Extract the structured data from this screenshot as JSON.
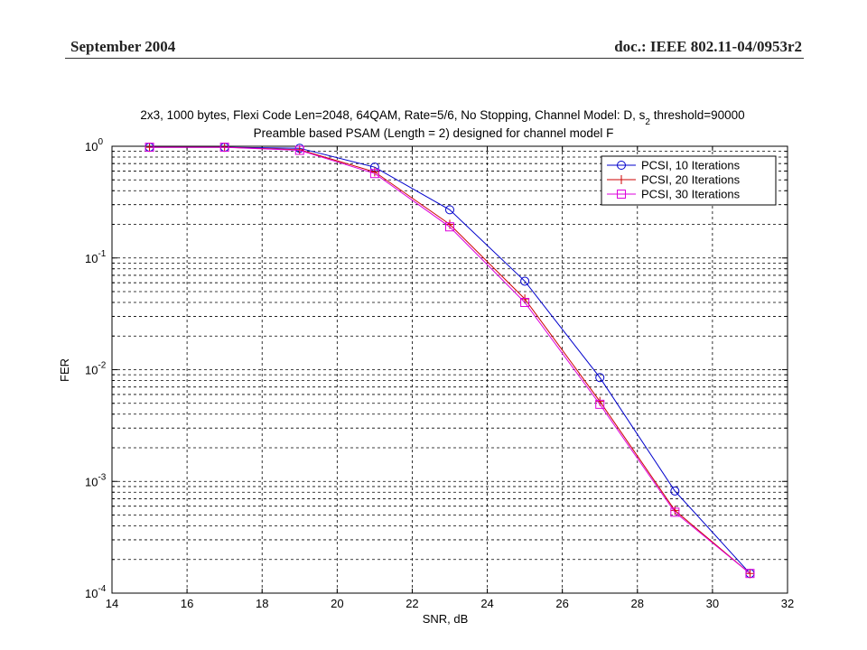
{
  "header": {
    "date": "September 2004",
    "doc": "doc.: IEEE 802.11-04/0953r2"
  },
  "chart_data": {
    "type": "line",
    "title_line1_pre": "2x3, 1000 bytes, Flexi Code Len=2048, 64QAM, Rate=5/6, No Stopping, Channel Model: D, s",
    "title_line1_sub": "2",
    "title_line1_post": " threshold=90000",
    "title_line2": "Preamble based PSAM (Length = 2) designed for channel model F",
    "xlabel": "SNR, dB",
    "ylabel": "FER",
    "xlim": [
      14,
      32
    ],
    "xticks": [
      "14",
      "16",
      "18",
      "20",
      "22",
      "24",
      "26",
      "28",
      "30",
      "32"
    ],
    "yscale": "log",
    "ylim": [
      0.0001,
      1
    ],
    "yticks": [
      {
        "base": "10",
        "exp": "0"
      },
      {
        "base": "10",
        "exp": "-1"
      },
      {
        "base": "10",
        "exp": "-2"
      },
      {
        "base": "10",
        "exp": "-3"
      },
      {
        "base": "10",
        "exp": "-4"
      }
    ],
    "grid": true,
    "legend_position": "top-right",
    "x": [
      15,
      17,
      19,
      21,
      23,
      25,
      27,
      29,
      31
    ],
    "series": [
      {
        "name": "PCSI, 10 Iterations",
        "color": "#0000cc",
        "marker": "circle",
        "values": [
          0.98,
          0.98,
          0.96,
          0.65,
          0.27,
          0.062,
          0.0085,
          0.00082,
          0.00015
        ]
      },
      {
        "name": "PCSI, 20 Iterations",
        "color": "#cc0000",
        "marker": "plus",
        "values": [
          0.98,
          0.98,
          0.93,
          0.59,
          0.2,
          0.043,
          0.0052,
          0.00055,
          0.00015
        ]
      },
      {
        "name": "PCSI, 30 Iterations",
        "color": "#dd00dd",
        "marker": "square",
        "values": [
          0.98,
          0.98,
          0.92,
          0.57,
          0.19,
          0.04,
          0.0049,
          0.00053,
          0.00015
        ]
      }
    ]
  }
}
